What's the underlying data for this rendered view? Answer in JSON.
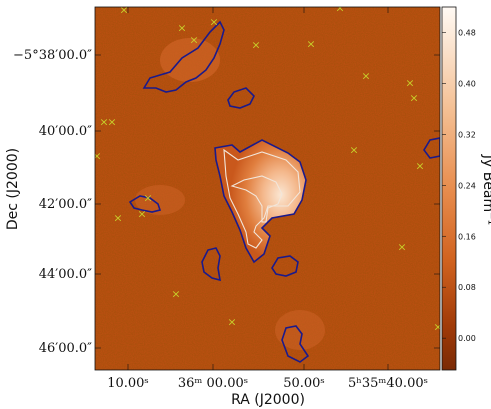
{
  "figure": {
    "xlabel": "RA (J2000)",
    "ylabel": "Dec (J2000)",
    "x_ticks": [
      "10.00ˢ",
      "36ᵐ 00.00ˢ",
      "50.00ˢ",
      "5ʰ35ᵐ40.00ˢ"
    ],
    "y_ticks": [
      "−5°38′00.0″",
      "40′00.0″",
      "42′00.0″",
      "44′00.0″",
      "46′00.0″"
    ],
    "colorbar": {
      "label": "Jy Beam⁻¹",
      "ticks": [
        "0.48",
        "0.40",
        "0.32",
        "0.24",
        "0.16",
        "0.08",
        "0.00"
      ],
      "range": [
        -0.05,
        0.52
      ]
    },
    "colors": {
      "background": "#c24f14",
      "contour_outer": "#1a1a8c",
      "contour_inner": "#f2e6da",
      "marker": "#c8cf2a"
    },
    "marker_symbol": "×"
  }
}
